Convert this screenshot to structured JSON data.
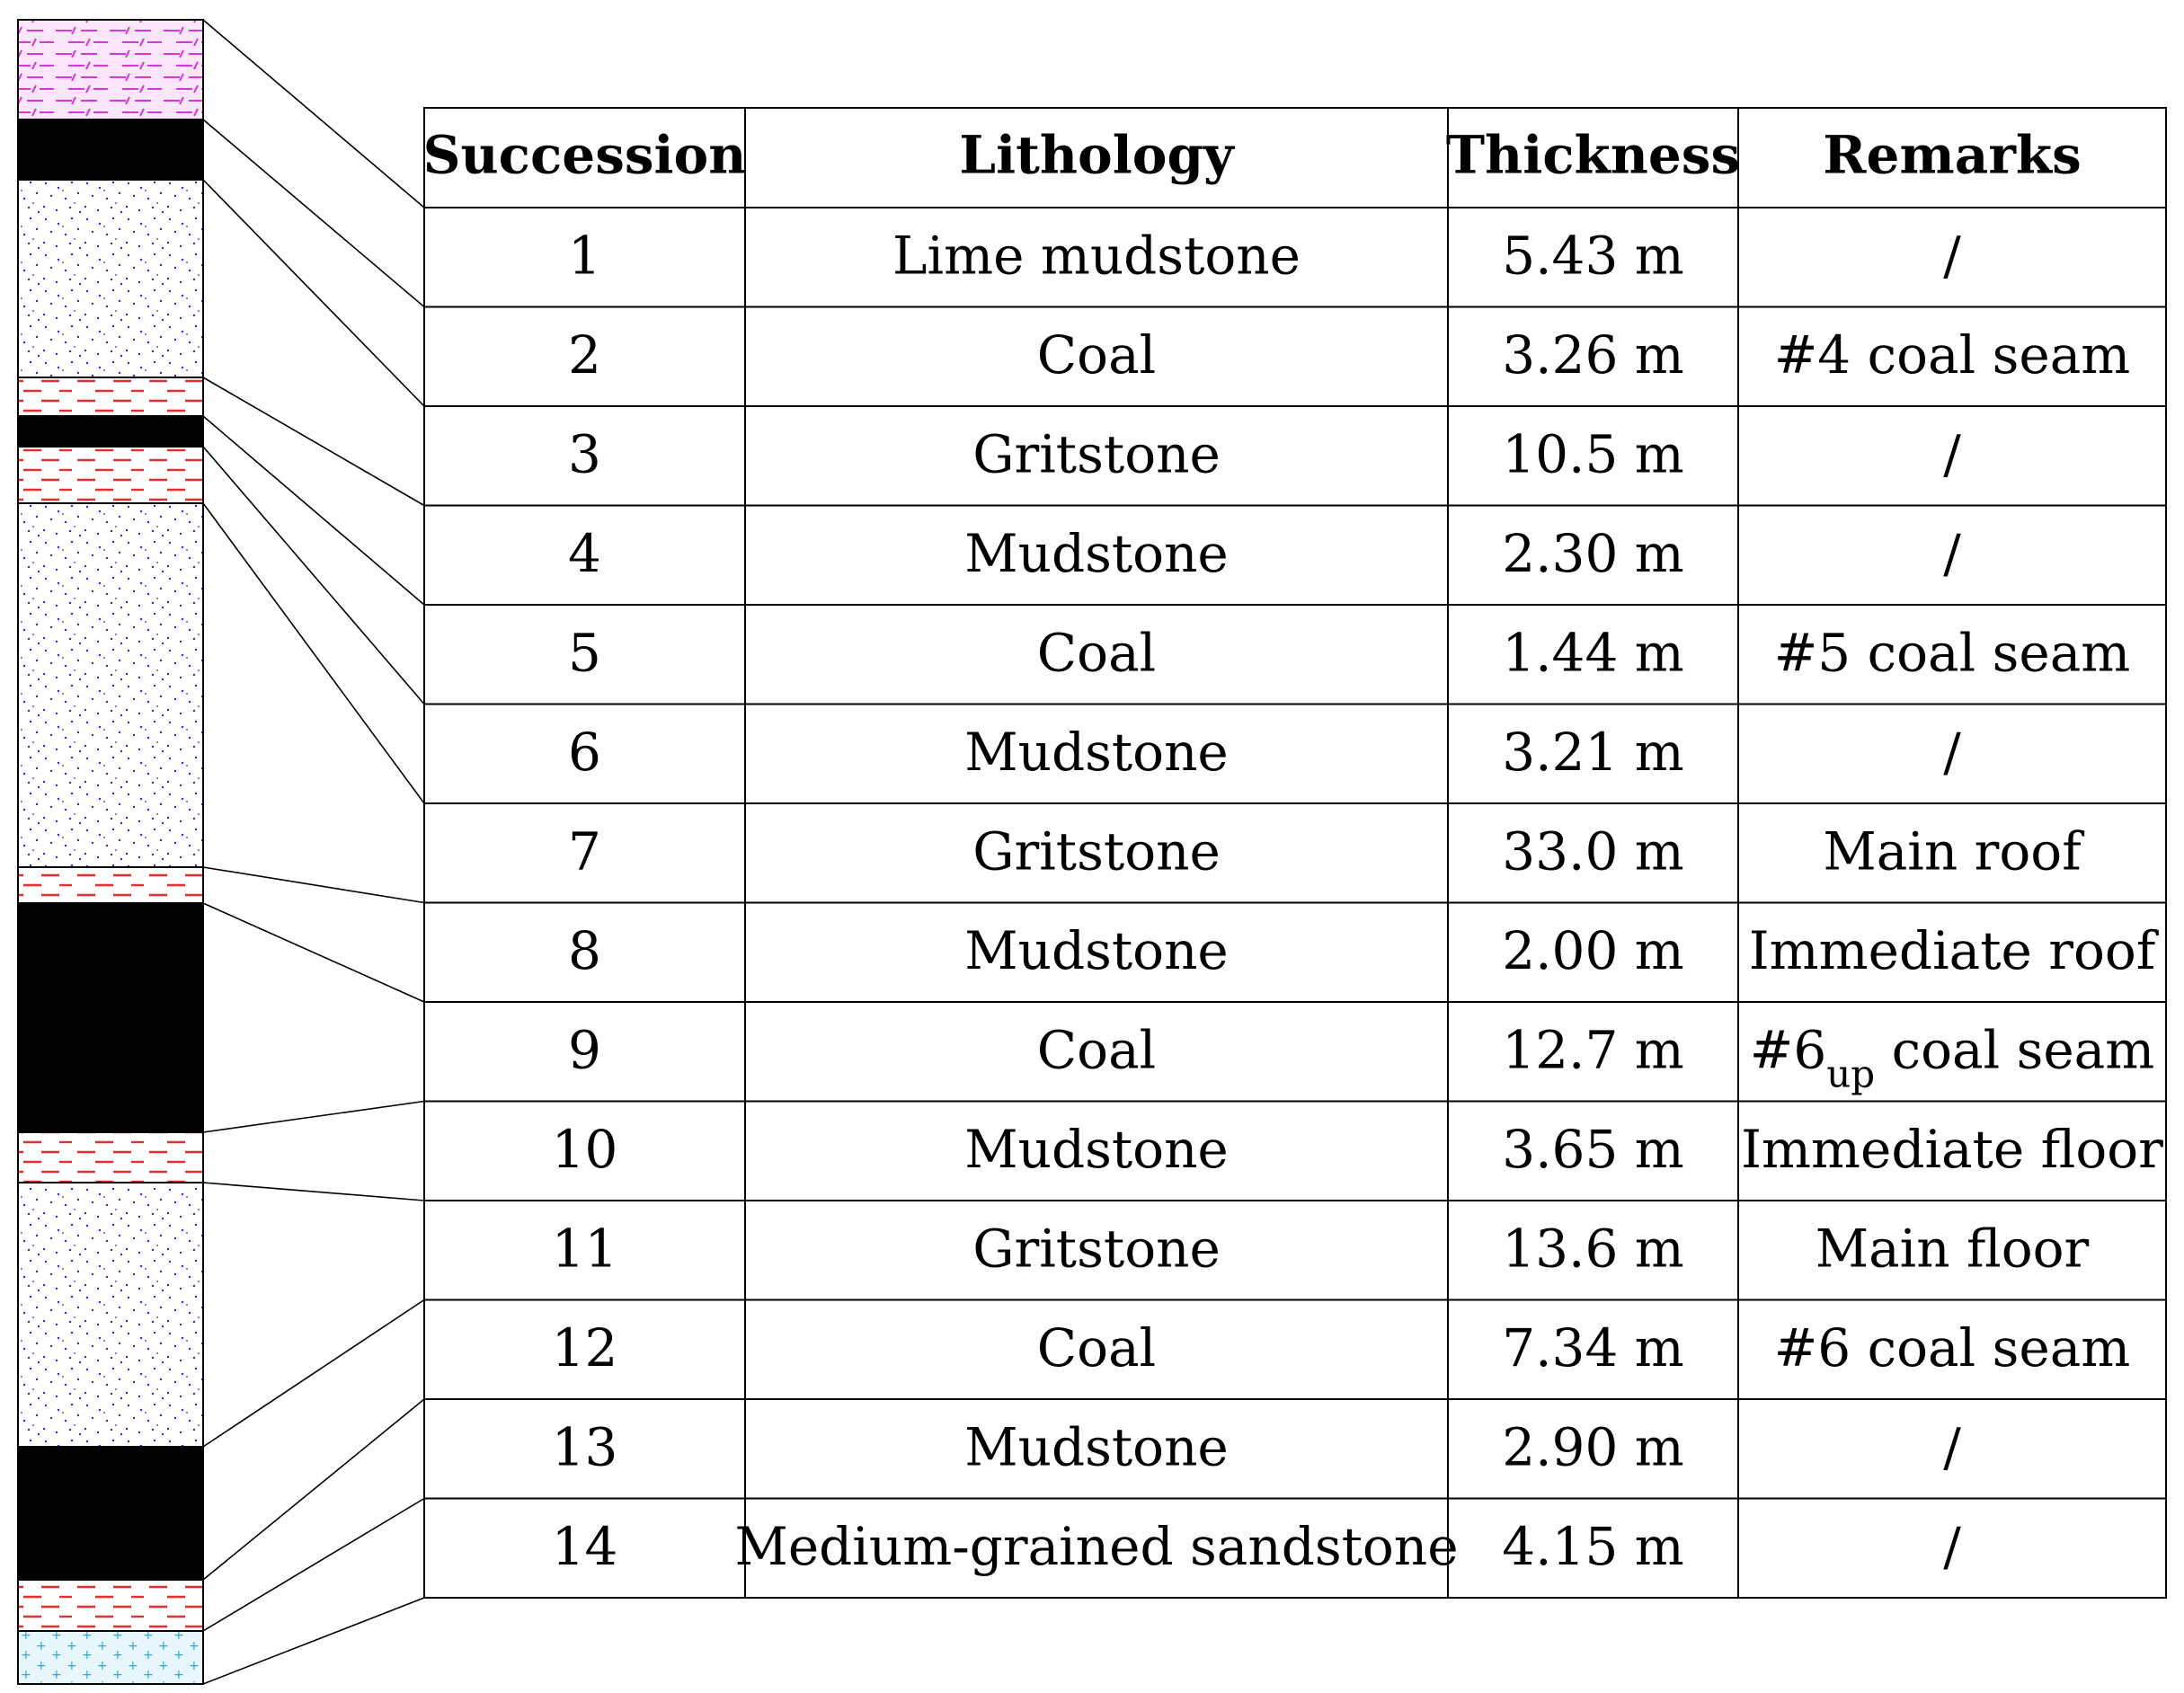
{
  "table": {
    "headers": [
      "Succession",
      "Lithology",
      "Thickness",
      "Remarks"
    ],
    "rows": [
      {
        "succession": "1",
        "lithology": "Lime mudstone",
        "thickness": "5.43 m",
        "remarks": "/"
      },
      {
        "succession": "2",
        "lithology": "Coal",
        "thickness": "3.26 m",
        "remarks": "#4 coal seam"
      },
      {
        "succession": "3",
        "lithology": "Gritstone",
        "thickness": "10.5 m",
        "remarks": "/"
      },
      {
        "succession": "4",
        "lithology": "Mudstone",
        "thickness": "2.30 m",
        "remarks": "/"
      },
      {
        "succession": "5",
        "lithology": "Coal",
        "thickness": "1.44 m",
        "remarks": "#5 coal seam"
      },
      {
        "succession": "6",
        "lithology": "Mudstone",
        "thickness": "3.21 m",
        "remarks": "/"
      },
      {
        "succession": "7",
        "lithology": "Gritstone",
        "thickness": "33.0 m",
        "remarks": "Main roof"
      },
      {
        "succession": "8",
        "lithology": "Mudstone",
        "thickness": "2.00 m",
        "remarks": "Immediate roof"
      },
      {
        "succession": "9",
        "lithology": "Coal",
        "thickness": "12.7 m",
        "remarks_prefix": "#6",
        "remarks_sub": "up",
        "remarks_suffix": " coal seam"
      },
      {
        "succession": "10",
        "lithology": "Mudstone",
        "thickness": "3.65 m",
        "remarks": "Immediate floor"
      },
      {
        "succession": "11",
        "lithology": "Gritstone",
        "thickness": "13.6 m",
        "remarks": "Main floor"
      },
      {
        "succession": "12",
        "lithology": "Coal",
        "thickness": "7.34 m",
        "remarks": "#6 coal seam"
      },
      {
        "succession": "13",
        "lithology": "Mudstone",
        "thickness": "2.90 m",
        "remarks": "/"
      },
      {
        "succession": "14",
        "lithology": "Medium-grained sandstone",
        "thickness": "4.15 m",
        "remarks": "/"
      }
    ]
  },
  "column_layers": [
    {
      "succession": "1",
      "pattern": "lime-mudstone"
    },
    {
      "succession": "2",
      "pattern": "coal"
    },
    {
      "succession": "3",
      "pattern": "gritstone"
    },
    {
      "succession": "4",
      "pattern": "mudstone"
    },
    {
      "succession": "5",
      "pattern": "coal"
    },
    {
      "succession": "6",
      "pattern": "mudstone"
    },
    {
      "succession": "7",
      "pattern": "gritstone"
    },
    {
      "succession": "8",
      "pattern": "mudstone"
    },
    {
      "succession": "9",
      "pattern": "coal"
    },
    {
      "succession": "10",
      "pattern": "mudstone"
    },
    {
      "succession": "11",
      "pattern": "gritstone"
    },
    {
      "succession": "12",
      "pattern": "coal"
    },
    {
      "succession": "13",
      "pattern": "mudstone"
    },
    {
      "succession": "14",
      "pattern": "sandstone"
    }
  ],
  "colors": {
    "lime_mudstone": "#d63ad6",
    "lime_mudstone_bg": "#fbe6fb",
    "coal": "#000000",
    "gritstone_dots": "#2b2bd6",
    "mudstone_dash": "#e03030",
    "sandstone_plus": "#29a8d9",
    "sandstone_bg": "#e8f7fc",
    "rule": "#000000"
  }
}
